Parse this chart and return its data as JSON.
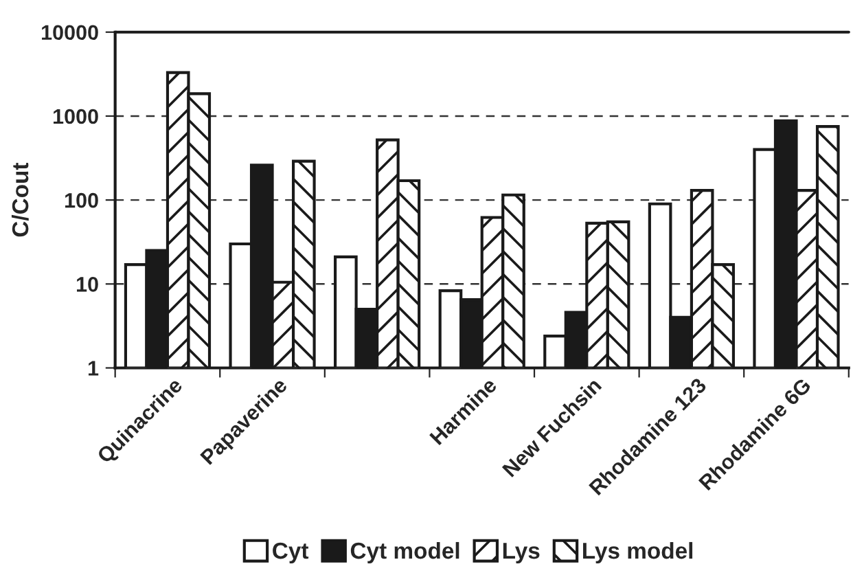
{
  "chart_data": {
    "type": "bar",
    "ylabel": "C/Cout",
    "log": true,
    "categories": [
      "Quinacrine",
      "Papaverine",
      null,
      "Harmine",
      "New Fuchsin",
      "Rhodamine 123",
      "Rhodamine 6G"
    ],
    "series": [
      {
        "name": "Cyt",
        "color": "#ffffff",
        "values": [
          17,
          30,
          21,
          8.3,
          2.4,
          90,
          400
        ]
      },
      {
        "name": "Cyt model",
        "color": "#1a1a1a",
        "values": [
          25,
          260,
          5,
          6.5,
          4.6,
          4,
          880
        ]
      },
      {
        "name": "Lys",
        "color": "#1a1a1a",
        "values": [
          3300,
          10.5,
          520,
          62,
          53,
          130,
          130
        ]
      },
      {
        "name": "Lys model",
        "color": "#1a1a1a",
        "values": [
          1850,
          290,
          170,
          115,
          55,
          17,
          750
        ]
      }
    ],
    "ylim": [
      1,
      10000
    ],
    "yticks": [
      1,
      10,
      100,
      1000,
      10000
    ],
    "grid": "y",
    "legend": "bottom"
  }
}
